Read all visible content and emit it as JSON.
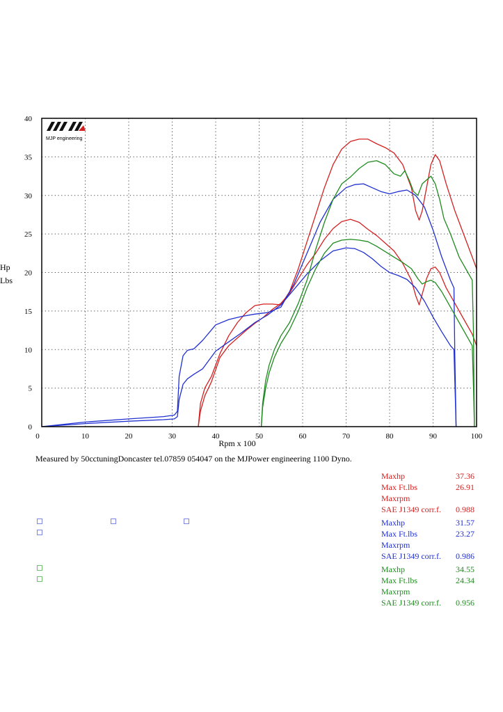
{
  "chart_data": {
    "type": "line",
    "logo_text": "MJP engineering",
    "xlabel": "Rpm x 100",
    "ylabel": [
      "Hp",
      "Lbs"
    ],
    "xlim": [
      0,
      100
    ],
    "ylim": [
      0,
      40
    ],
    "xticks": [
      "0",
      "10",
      "20",
      "30",
      "40",
      "50",
      "60",
      "70",
      "80",
      "90",
      "100"
    ],
    "yticks": [
      "0",
      "5",
      "10",
      "15",
      "20",
      "25",
      "30",
      "35",
      "40"
    ],
    "grid": true,
    "series": [
      {
        "color": "#d42020",
        "kind": "hp",
        "x": [
          36,
          36.5,
          37.5,
          39,
          41,
          43,
          45,
          47,
          49,
          51,
          53,
          55,
          57,
          59,
          61,
          63,
          65,
          67,
          69,
          71,
          73,
          75,
          77,
          79,
          81,
          83,
          85,
          86,
          86.8,
          87.5,
          88.5,
          89.5,
          90.5,
          91.5,
          93,
          95,
          97,
          99,
          100
        ],
        "y": [
          0,
          3,
          5,
          6.5,
          9.5,
          11.8,
          13.5,
          14.8,
          15.7,
          15.9,
          15.9,
          15.8,
          17.5,
          20.5,
          24,
          27.5,
          31,
          34,
          36,
          37,
          37.3,
          37.3,
          36.7,
          36.2,
          35.5,
          34,
          31,
          28,
          26.8,
          28,
          31,
          34,
          35.3,
          34.5,
          31.5,
          28,
          25,
          22,
          20.5
        ]
      },
      {
        "color": "#d42020",
        "kind": "torque",
        "x": [
          36,
          36.5,
          37.5,
          39,
          41,
          43,
          45,
          47,
          49,
          51,
          53,
          55,
          57,
          59,
          61,
          63,
          65,
          67,
          69,
          71,
          73,
          75,
          77,
          79,
          81,
          83,
          85,
          86,
          86.8,
          87.5,
          88.5,
          89.5,
          90.5,
          91.5,
          93,
          95,
          97,
          99,
          100
        ],
        "y": [
          0,
          2,
          4,
          5.8,
          9,
          10.5,
          11.5,
          12.5,
          13.4,
          14.2,
          15.2,
          16,
          17.3,
          19.2,
          21,
          22.5,
          24.3,
          25.7,
          26.6,
          26.9,
          26.5,
          25.6,
          24.8,
          23.8,
          22.8,
          21.2,
          19,
          17,
          15.8,
          17.2,
          19.2,
          20.5,
          20.7,
          20,
          18,
          16,
          14,
          12,
          10.5
        ]
      },
      {
        "color": "#1f2fd0",
        "kind": "hp",
        "x": [
          0,
          10,
          20,
          28,
          30.5,
          31.2,
          31.6,
          32.5,
          33.5,
          35,
          37,
          40,
          43,
          46,
          49,
          52,
          55,
          58,
          61,
          64,
          67,
          70,
          72,
          74,
          76,
          78,
          80,
          82,
          84,
          86,
          88,
          90,
          92,
          94,
          94.8,
          95,
          95.3
        ],
        "y": [
          0,
          0.6,
          1,
          1.3,
          1.5,
          2,
          6.5,
          9.2,
          9.9,
          10.1,
          11.2,
          13.2,
          13.9,
          14.3,
          14.6,
          14.8,
          15.5,
          18.5,
          22.5,
          26.5,
          29.5,
          31,
          31.4,
          31.5,
          31,
          30.5,
          30.2,
          30.5,
          30.7,
          30,
          28.5,
          25.5,
          22,
          19,
          18,
          9,
          0
        ]
      },
      {
        "color": "#1f2fd0",
        "kind": "torque",
        "x": [
          0,
          10,
          20,
          28,
          30.5,
          31.2,
          31.6,
          32.5,
          33.5,
          35,
          37,
          40,
          43,
          46,
          49,
          52,
          55,
          58,
          61,
          64,
          67,
          70,
          72,
          74,
          76,
          78,
          80,
          82,
          84,
          86,
          88,
          90,
          92,
          94,
          94.8,
          95.3
        ],
        "y": [
          0,
          0.4,
          0.7,
          0.9,
          1,
          1.3,
          3.5,
          5.5,
          6.2,
          6.8,
          7.5,
          9.8,
          11,
          12.2,
          13.5,
          14.5,
          15.8,
          17.8,
          19.8,
          21.5,
          22.8,
          23.2,
          23.1,
          22.6,
          21.8,
          20.8,
          20,
          19.6,
          19.1,
          18,
          16.3,
          14.2,
          12.3,
          10.5,
          10,
          0
        ]
      },
      {
        "color": "#1e8a1e",
        "kind": "hp",
        "x": [
          50.5,
          50.8,
          51.5,
          52.3,
          53.5,
          55,
          57,
          59,
          61,
          63,
          65,
          67,
          69,
          71,
          73,
          75,
          77,
          79,
          81,
          82.5,
          83.5,
          84.5,
          85.5,
          86.5,
          87.5,
          88.5,
          89.5,
          90.5,
          91.5,
          92.5,
          94,
          96,
          98,
          99,
          99.3,
          99.5
        ],
        "y": [
          0,
          3,
          6,
          8,
          10,
          11.8,
          13.5,
          16,
          19,
          23,
          26.5,
          29.5,
          31.5,
          32.4,
          33.5,
          34.3,
          34.5,
          34,
          32.8,
          32.5,
          33.2,
          32,
          30.5,
          30,
          31.5,
          32,
          32.5,
          31.5,
          29.5,
          27,
          25,
          22,
          20,
          19,
          12,
          0
        ]
      },
      {
        "color": "#1e8a1e",
        "kind": "torque",
        "x": [
          50.5,
          50.8,
          51.5,
          52.3,
          53.5,
          55,
          57,
          59,
          61,
          63,
          65,
          67,
          69,
          71,
          73,
          75,
          77,
          79,
          81,
          83,
          85,
          86.5,
          87.5,
          88.5,
          89.5,
          90.5,
          92,
          94,
          96,
          98,
          99,
          99.3,
          99.5
        ],
        "y": [
          0,
          2.5,
          5,
          7,
          9,
          10.8,
          12.6,
          15,
          18,
          20.5,
          22.5,
          23.8,
          24.2,
          24.3,
          24.2,
          24,
          23.4,
          22.7,
          22,
          21.3,
          20.5,
          19.2,
          18.5,
          18.8,
          19,
          18.7,
          17.5,
          15.5,
          13.5,
          11.5,
          10.5,
          5,
          0
        ]
      }
    ]
  },
  "measured_text": "Measured by 50cctuningDoncaster tel.07859 054047 on the MJPower engineering 1100 Dyno.",
  "results": [
    {
      "color": "#d42020",
      "rows": [
        [
          "Maxhp",
          "37.36"
        ],
        [
          "Max Ft.lbs",
          "26.91"
        ],
        [
          "Maxrpm",
          ""
        ],
        [
          "SAE J1349 corr.f.",
          "0.988"
        ]
      ]
    },
    {
      "color": "#1f2fd0",
      "rows": [
        [
          "Maxhp",
          "31.57"
        ],
        [
          "Max Ft.lbs",
          "23.27"
        ],
        [
          "Maxrpm",
          ""
        ],
        [
          "SAE J1349 corr.f.",
          "0.986"
        ]
      ]
    },
    {
      "color": "#1e8a1e",
      "rows": [
        [
          "Maxhp",
          "34.55"
        ],
        [
          "Max Ft.lbs",
          "24.34"
        ],
        [
          "Maxrpm",
          ""
        ],
        [
          "SAE J1349 corr.f.",
          "0.956"
        ]
      ]
    }
  ]
}
